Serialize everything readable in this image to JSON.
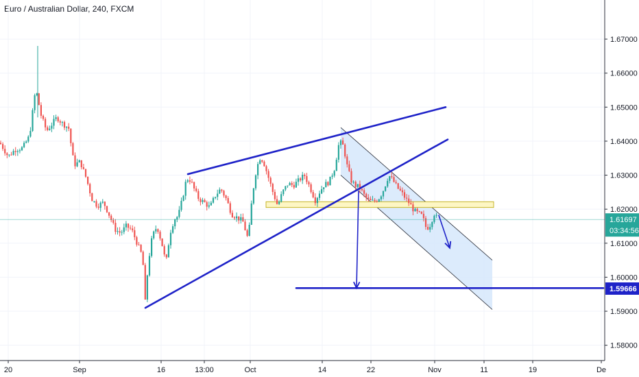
{
  "header": {
    "title": "Euro / Australian Dollar, 240, FXCM"
  },
  "colors": {
    "up": "#26a69a",
    "down": "#ef5350",
    "drawing": "#1e22c8",
    "channel_fill": "#d6e8fb",
    "zone_fill": "#fdf6c4",
    "zone_border": "#b8a400",
    "price_line": "#26a69a",
    "target_label": "#1e22c8"
  },
  "chart_data": {
    "type": "candlestick",
    "symbol": "EURAUD",
    "timeframe": "240",
    "ylim": [
      1.5755,
      1.6815
    ],
    "y_ticks": [
      "1.67000",
      "1.66000",
      "1.65000",
      "1.64000",
      "1.63000",
      "1.62000",
      "1.61000",
      "1.60000",
      "1.59000",
      "1.58000"
    ],
    "x_ticks": [
      "20",
      "Sep",
      "16",
      "13:00",
      "Oct",
      "14",
      "22",
      "Nov",
      "11",
      "19",
      "De"
    ],
    "current_price": {
      "label": "1.61697",
      "value": 1.61697
    },
    "countdown": "03:34:56",
    "target": {
      "label": "1.59666",
      "value": 1.59666
    },
    "support_zone": {
      "low": 1.6205,
      "high": 1.6222
    },
    "price_path": [
      [
        0,
        1.6395
      ],
      [
        12,
        1.6355
      ],
      [
        22,
        1.6375
      ],
      [
        33,
        1.638
      ],
      [
        43,
        1.6415
      ],
      [
        52,
        1.6555
      ],
      [
        60,
        1.6475
      ],
      [
        68,
        1.643
      ],
      [
        75,
        1.6448
      ],
      [
        83,
        1.647
      ],
      [
        92,
        1.645
      ],
      [
        100,
        1.644
      ],
      [
        108,
        1.633
      ],
      [
        117,
        1.634
      ],
      [
        126,
        1.629
      ],
      [
        134,
        1.623
      ],
      [
        142,
        1.621
      ],
      [
        151,
        1.622
      ],
      [
        160,
        1.618
      ],
      [
        168,
        1.614
      ],
      [
        176,
        1.613
      ],
      [
        184,
        1.615
      ],
      [
        192,
        1.614
      ],
      [
        200,
        1.61
      ],
      [
        208,
        1.606
      ],
      [
        212,
        1.592
      ],
      [
        216,
        1.604
      ],
      [
        222,
        1.612
      ],
      [
        229,
        1.615
      ],
      [
        236,
        1.61
      ],
      [
        242,
        1.604
      ],
      [
        248,
        1.613
      ],
      [
        254,
        1.617
      ],
      [
        260,
        1.618
      ],
      [
        266,
        1.623
      ],
      [
        272,
        1.629
      ],
      [
        278,
        1.6285
      ],
      [
        284,
        1.6255
      ],
      [
        290,
        1.623
      ],
      [
        298,
        1.622
      ],
      [
        306,
        1.6205
      ],
      [
        314,
        1.624
      ],
      [
        322,
        1.626
      ],
      [
        330,
        1.623
      ],
      [
        338,
        1.6185
      ],
      [
        346,
        1.6175
      ],
      [
        354,
        1.6165
      ],
      [
        362,
        1.611
      ],
      [
        368,
        1.624
      ],
      [
        374,
        1.632
      ],
      [
        380,
        1.6355
      ],
      [
        386,
        1.633
      ],
      [
        392,
        1.629
      ],
      [
        398,
        1.625
      ],
      [
        405,
        1.621
      ],
      [
        412,
        1.625
      ],
      [
        420,
        1.6275
      ],
      [
        428,
        1.627
      ],
      [
        436,
        1.6285
      ],
      [
        444,
        1.63
      ],
      [
        452,
        1.6265
      ],
      [
        460,
        1.6225
      ],
      [
        466,
        1.625
      ],
      [
        472,
        1.627
      ],
      [
        480,
        1.628
      ],
      [
        488,
        1.632
      ],
      [
        495,
        1.64
      ],
      [
        501,
        1.6385
      ],
      [
        506,
        1.633
      ],
      [
        512,
        1.6285
      ],
      [
        518,
        1.627
      ],
      [
        524,
        1.6265
      ],
      [
        530,
        1.6245
      ],
      [
        536,
        1.6228
      ],
      [
        542,
        1.6222
      ],
      [
        548,
        1.6225
      ],
      [
        554,
        1.6235
      ],
      [
        560,
        1.626
      ],
      [
        567,
        1.63
      ],
      [
        573,
        1.6285
      ],
      [
        580,
        1.6262
      ],
      [
        586,
        1.6248
      ],
      [
        592,
        1.623
      ],
      [
        598,
        1.6215
      ],
      [
        604,
        1.6195
      ],
      [
        610,
        1.6188
      ],
      [
        616,
        1.618
      ],
      [
        622,
        1.6142
      ],
      [
        628,
        1.6155
      ],
      [
        633,
        1.6188
      ],
      [
        638,
        1.6172
      ]
    ],
    "drawings": [
      {
        "name": "rising-wedge-upper-line",
        "points": [
          [
            274,
            1.6303
          ],
          [
            650,
            1.65
          ]
        ]
      },
      {
        "name": "rising-wedge-lower-line",
        "points": [
          [
            212,
            1.591
          ],
          [
            653,
            1.6405
          ]
        ]
      },
      {
        "name": "target-line",
        "points": [
          [
            432,
            1.5968
          ],
          [
            880,
            1.5968
          ]
        ]
      },
      {
        "name": "target-projection-arrow",
        "points": [
          [
            523,
            1.6252
          ],
          [
            520,
            1.5968
          ]
        ]
      },
      {
        "name": "continuation-arrow",
        "points": [
          [
            640,
            1.6182
          ],
          [
            656,
            1.6086
          ]
        ]
      }
    ],
    "channel": {
      "upper_start": [
        497,
        1.644
      ],
      "upper_end": [
        718,
        1.605
      ],
      "lower_start": [
        497,
        1.63
      ],
      "lower_end": [
        718,
        1.5905
      ]
    }
  }
}
